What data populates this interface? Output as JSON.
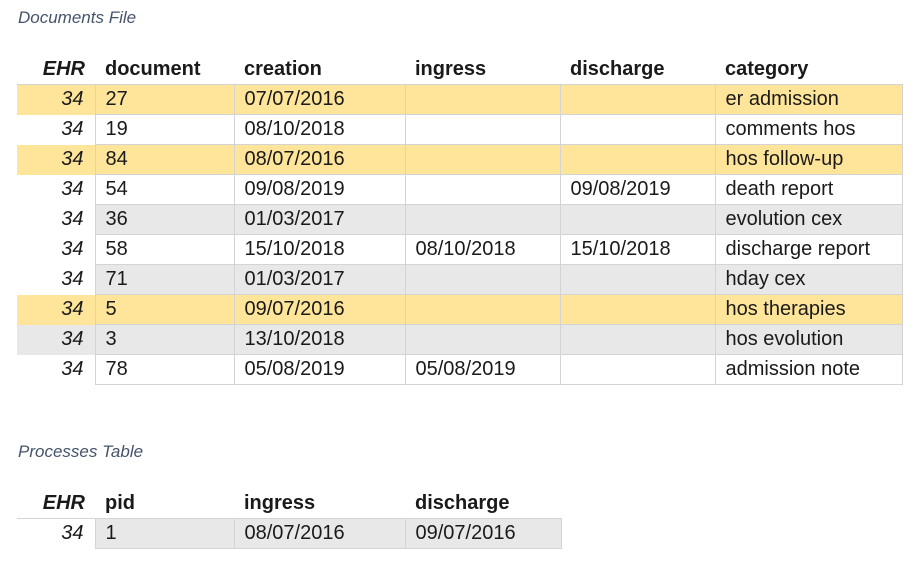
{
  "documents": {
    "title": "Documents File",
    "columns": [
      "EHR",
      "document",
      "creation",
      "ingress",
      "discharge",
      "category"
    ],
    "rows": [
      {
        "ehr": "34",
        "document": "27",
        "creation": "07/07/2016",
        "ingress": "",
        "discharge": "",
        "category": "er admission",
        "style": "highlight"
      },
      {
        "ehr": "34",
        "document": "19",
        "creation": "08/10/2018",
        "ingress": "",
        "discharge": "",
        "category": "comments hos",
        "style": "plain"
      },
      {
        "ehr": "34",
        "document": "84",
        "creation": "08/07/2016",
        "ingress": "",
        "discharge": "",
        "category": "hos follow-up",
        "style": "highlight"
      },
      {
        "ehr": "34",
        "document": "54",
        "creation": "09/08/2019",
        "ingress": "",
        "discharge": "09/08/2019",
        "category": "death report",
        "style": "plain"
      },
      {
        "ehr": "34",
        "document": "36",
        "creation": "01/03/2017",
        "ingress": "",
        "discharge": "",
        "category": "evolution cex",
        "style": "gray"
      },
      {
        "ehr": "34",
        "document": "58",
        "creation": "15/10/2018",
        "ingress": "08/10/2018",
        "discharge": "15/10/2018",
        "category": "discharge report",
        "style": "plain"
      },
      {
        "ehr": "34",
        "document": "71",
        "creation": "01/03/2017",
        "ingress": "",
        "discharge": "",
        "category": "hday cex",
        "style": "gray"
      },
      {
        "ehr": "34",
        "document": "5",
        "creation": "09/07/2016",
        "ingress": "",
        "discharge": "",
        "category": "hos therapies",
        "style": "highlight"
      },
      {
        "ehr": "34",
        "document": "3",
        "creation": "13/10/2018",
        "ingress": "",
        "discharge": "",
        "category": "hos evolution",
        "style": "gray-full"
      },
      {
        "ehr": "34",
        "document": "78",
        "creation": "05/08/2019",
        "ingress": "05/08/2019",
        "discharge": "",
        "category": "admission note",
        "style": "plain"
      }
    ]
  },
  "processes": {
    "title": "Processes Table",
    "columns": [
      "EHR",
      "pid",
      "ingress",
      "discharge"
    ],
    "rows": [
      {
        "ehr": "34",
        "pid": "1",
        "ingress": "08/07/2016",
        "discharge": "09/07/2016"
      }
    ]
  },
  "colors": {
    "highlight": "#ffe599",
    "gray": "#e8e8e8",
    "title": "#44546a",
    "border": "#d4d4d4"
  }
}
